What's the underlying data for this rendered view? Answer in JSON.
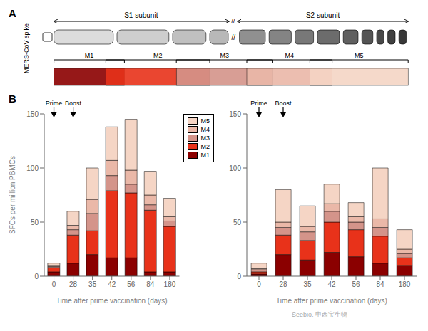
{
  "chart_data": [
    {
      "type": "bar",
      "stacked": true,
      "annotations": [
        "A",
        "MERS-CoV spike",
        "S1 subunit",
        "S2 subunit",
        "//",
        "B",
        "Prime",
        "Boost",
        "Seebio. 申西宝生物"
      ],
      "categories": [
        "0",
        "28",
        "35",
        "42",
        "56",
        "84",
        "180"
      ],
      "series": [
        {
          "name": "M1",
          "color": "#8B0000",
          "values": [
            4,
            12,
            20,
            17,
            17,
            4,
            4
          ]
        },
        {
          "name": "M2",
          "color": "#E8321A",
          "values": [
            4,
            26,
            22,
            62,
            60,
            57,
            42
          ]
        },
        {
          "name": "M3",
          "color": "#D4948A",
          "values": [
            1,
            5,
            16,
            14,
            8,
            5,
            5
          ]
        },
        {
          "name": "M4",
          "color": "#EAB8A8",
          "values": [
            1,
            4,
            13,
            14,
            13,
            9,
            4
          ]
        },
        {
          "name": "M5",
          "color": "#F5D5C5",
          "values": [
            2,
            13,
            29,
            31,
            47,
            22,
            17
          ]
        }
      ],
      "xlabel": "Time after prime vaccination (days)",
      "ylabel": "SFCs per million PBMCs",
      "ylim": [
        0,
        150
      ],
      "yticks": [
        0,
        50,
        100,
        150
      ],
      "legend": "upper right"
    },
    {
      "type": "bar",
      "stacked": true,
      "annotations": [
        "Prime",
        "Boost"
      ],
      "categories": [
        "0",
        "28",
        "35",
        "42",
        "56",
        "84",
        "180"
      ],
      "series": [
        {
          "name": "M1",
          "color": "#8B0000",
          "values": [
            2,
            20,
            15,
            22,
            18,
            12,
            10
          ]
        },
        {
          "name": "M2",
          "color": "#E8321A",
          "values": [
            2,
            18,
            18,
            28,
            25,
            25,
            7
          ]
        },
        {
          "name": "M3",
          "color": "#D4948A",
          "values": [
            2,
            7,
            8,
            10,
            7,
            8,
            4
          ]
        },
        {
          "name": "M4",
          "color": "#EAB8A8",
          "values": [
            1,
            5,
            5,
            7,
            5,
            8,
            4
          ]
        },
        {
          "name": "M5",
          "color": "#F5D5C5",
          "values": [
            5,
            30,
            19,
            18,
            13,
            47,
            18
          ]
        }
      ],
      "xlabel": "Time after prime vaccination (days)",
      "ylim": [
        0,
        150
      ],
      "yticks": [
        0,
        50,
        100,
        150
      ]
    }
  ]
}
